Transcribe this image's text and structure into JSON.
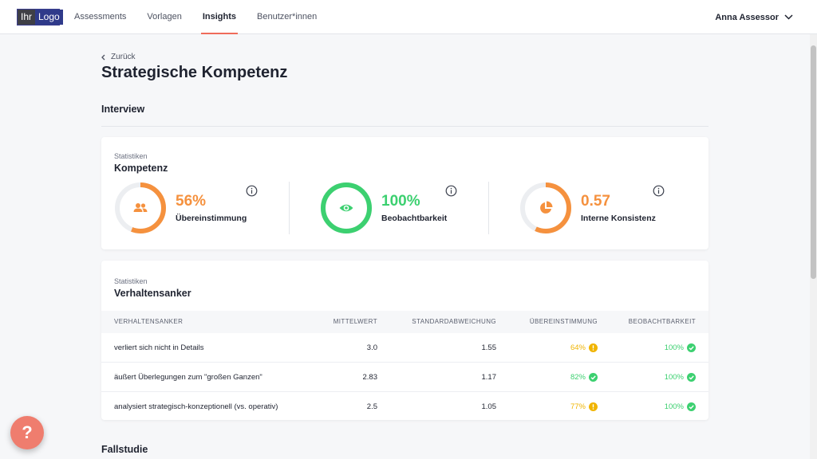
{
  "header": {
    "logo_left": "Ihr",
    "logo_right": "Logo",
    "nav": [
      {
        "label": "Assessments"
      },
      {
        "label": "Vorlagen"
      },
      {
        "label": "Insights"
      },
      {
        "label": "Benutzer*innen"
      }
    ],
    "active_nav": "Insights",
    "user_name": "Anna Assessor"
  },
  "back_label": "Zurück",
  "page_title": "Strategische Kompetenz",
  "section_interview": "Interview",
  "section_fallstudie": "Fallstudie",
  "competence_card": {
    "subtitle": "Statistiken",
    "title": "Kompetenz",
    "stats": [
      {
        "value": "56%",
        "label": "Übereinstimmung",
        "icon": "people-icon",
        "color": "#f5913e",
        "fraction": 0.56
      },
      {
        "value": "100%",
        "label": "Beobachtbarkeit",
        "icon": "eye-icon",
        "color": "#3cd070",
        "fraction": 1.0
      },
      {
        "value": "0.57",
        "label": "Interne Konsistenz",
        "icon": "pie-chart-icon",
        "color": "#f5913e",
        "fraction": 0.57
      }
    ]
  },
  "anchor_card": {
    "subtitle": "Statistiken",
    "title": "Verhaltensanker",
    "columns": [
      "Verhaltensanker",
      "Mittelwert",
      "Standardabweichung",
      "Übereinstimmung",
      "Beobachtbarkeit"
    ],
    "rows": [
      {
        "anchor": "verliert sich nicht in Details",
        "mean": "3.0",
        "std": "1.55",
        "agreement": "64%",
        "agreement_status": "warning",
        "observability": "100%",
        "observability_status": "ok"
      },
      {
        "anchor": "äußert Überlegungen zum \"großen Ganzen\"",
        "mean": "2.83",
        "std": "1.17",
        "agreement": "82%",
        "agreement_status": "ok",
        "observability": "100%",
        "observability_status": "ok"
      },
      {
        "anchor": "analysiert strategisch-konzeptionell (vs. operativ)",
        "mean": "2.5",
        "std": "1.05",
        "agreement": "77%",
        "agreement_status": "warning",
        "observability": "100%",
        "observability_status": "ok"
      }
    ]
  },
  "colors": {
    "accent": "#ef6b5a",
    "orange": "#f5913e",
    "green": "#3cd070",
    "warning": "#f0b400",
    "ok": "#3cd070"
  },
  "help_label": "?"
}
